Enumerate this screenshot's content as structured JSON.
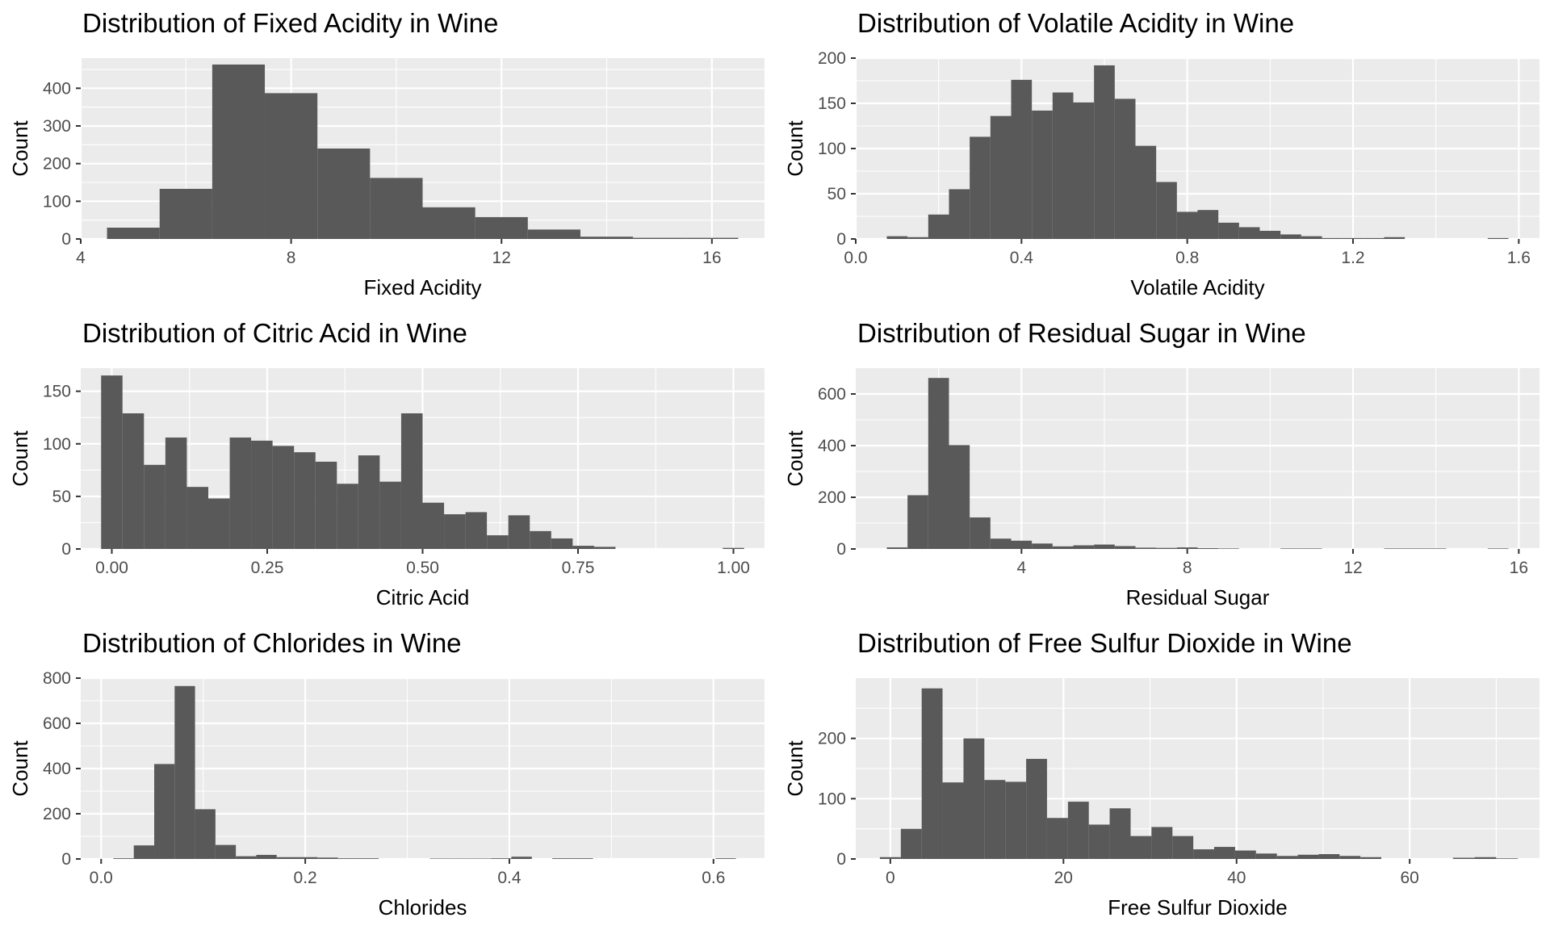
{
  "figure": {
    "background": "#ffffff",
    "panel_background": "#ebebeb",
    "bar_color": "#595959"
  },
  "chart_data": [
    {
      "type": "bar",
      "title": "Distribution of Fixed Acidity in Wine",
      "xlabel": "Fixed Acidity",
      "ylabel": "Count",
      "xlim": [
        4.0,
        17.0
      ],
      "ylim": [
        0,
        480
      ],
      "xticks": [
        4,
        8,
        12,
        16
      ],
      "xtick_labels": [
        "4",
        "8",
        "12",
        "16"
      ],
      "yticks": [
        0,
        100,
        200,
        300,
        400
      ],
      "ytick_labels": [
        "0",
        "100",
        "200",
        "300",
        "400"
      ],
      "bins": [
        [
          4.5,
          5.5,
          30
        ],
        [
          5.5,
          6.5,
          133
        ],
        [
          6.5,
          7.5,
          463
        ],
        [
          7.5,
          8.5,
          387
        ],
        [
          8.5,
          9.5,
          240
        ],
        [
          9.5,
          10.5,
          162
        ],
        [
          10.5,
          11.5,
          84
        ],
        [
          11.5,
          12.5,
          58
        ],
        [
          12.5,
          13.5,
          25
        ],
        [
          13.5,
          14.5,
          6
        ],
        [
          14.5,
          15.5,
          3
        ],
        [
          15.5,
          16.5,
          3
        ]
      ]
    },
    {
      "type": "bar",
      "title": "Distribution of Volatile Acidity in Wine",
      "xlabel": "Volatile Acidity",
      "ylabel": "Count",
      "xlim": [
        0.0,
        1.65
      ],
      "ylim": [
        0,
        200
      ],
      "xticks": [
        0.0,
        0.4,
        0.8,
        1.2,
        1.6
      ],
      "xtick_labels": [
        "0.0",
        "0.4",
        "0.8",
        "1.2",
        "1.6"
      ],
      "yticks": [
        0,
        50,
        100,
        150,
        200
      ],
      "ytick_labels": [
        "0",
        "50",
        "100",
        "150",
        "200"
      ],
      "bins": [
        [
          0.075,
          0.125,
          3
        ],
        [
          0.125,
          0.175,
          2
        ],
        [
          0.175,
          0.225,
          27
        ],
        [
          0.225,
          0.275,
          55
        ],
        [
          0.275,
          0.325,
          113
        ],
        [
          0.325,
          0.375,
          136
        ],
        [
          0.375,
          0.425,
          176
        ],
        [
          0.425,
          0.475,
          142
        ],
        [
          0.475,
          0.525,
          162
        ],
        [
          0.525,
          0.575,
          151
        ],
        [
          0.575,
          0.625,
          192
        ],
        [
          0.625,
          0.675,
          155
        ],
        [
          0.675,
          0.725,
          103
        ],
        [
          0.725,
          0.775,
          63
        ],
        [
          0.775,
          0.825,
          30
        ],
        [
          0.825,
          0.875,
          32
        ],
        [
          0.875,
          0.925,
          18
        ],
        [
          0.925,
          0.975,
          13
        ],
        [
          0.975,
          1.025,
          9
        ],
        [
          1.025,
          1.075,
          5
        ],
        [
          1.075,
          1.125,
          3
        ],
        [
          1.125,
          1.175,
          1
        ],
        [
          1.175,
          1.225,
          1
        ],
        [
          1.225,
          1.275,
          1
        ],
        [
          1.275,
          1.325,
          2
        ],
        [
          1.525,
          1.575,
          1
        ]
      ]
    },
    {
      "type": "bar",
      "title": "Distribution of Citric Acid in Wine",
      "xlabel": "Citric Acid",
      "ylabel": "Count",
      "xlim": [
        -0.05,
        1.05
      ],
      "ylim": [
        0,
        172
      ],
      "xticks": [
        0.0,
        0.25,
        0.5,
        0.75,
        1.0
      ],
      "xtick_labels": [
        "0.00",
        "0.25",
        "0.50",
        "0.75",
        "1.00"
      ],
      "yticks": [
        0,
        50,
        100,
        150
      ],
      "ytick_labels": [
        "0",
        "50",
        "100",
        "150"
      ],
      "bins": [
        [
          -0.0172,
          0.0172,
          165
        ],
        [
          0.0172,
          0.0517,
          129
        ],
        [
          0.0517,
          0.0862,
          80
        ],
        [
          0.0862,
          0.1207,
          106
        ],
        [
          0.1207,
          0.1552,
          59
        ],
        [
          0.1552,
          0.1897,
          48
        ],
        [
          0.1897,
          0.2241,
          106
        ],
        [
          0.2241,
          0.2586,
          103
        ],
        [
          0.2586,
          0.2931,
          98
        ],
        [
          0.2931,
          0.3276,
          92
        ],
        [
          0.3276,
          0.3621,
          83
        ],
        [
          0.3621,
          0.3966,
          62
        ],
        [
          0.3966,
          0.431,
          89
        ],
        [
          0.431,
          0.4655,
          64
        ],
        [
          0.4655,
          0.5,
          129
        ],
        [
          0.5,
          0.5345,
          44
        ],
        [
          0.5345,
          0.569,
          33
        ],
        [
          0.569,
          0.6034,
          35
        ],
        [
          0.6034,
          0.6379,
          13
        ],
        [
          0.6379,
          0.6724,
          32
        ],
        [
          0.6724,
          0.7069,
          17
        ],
        [
          0.7069,
          0.7414,
          10
        ],
        [
          0.7414,
          0.7759,
          3
        ],
        [
          0.7759,
          0.8103,
          2
        ],
        [
          0.9828,
          1.0172,
          1
        ]
      ]
    },
    {
      "type": "bar",
      "title": "Distribution of Residual Sugar in Wine",
      "xlabel": "Residual Sugar",
      "ylabel": "Count",
      "xlim": [
        0.0,
        16.5
      ],
      "ylim": [
        0,
        700
      ],
      "xticks": [
        4,
        8,
        12,
        16
      ],
      "xtick_labels": [
        "4",
        "8",
        "12",
        "16"
      ],
      "yticks": [
        0,
        200,
        400,
        600
      ],
      "ytick_labels": [
        "0",
        "200",
        "400",
        "600"
      ],
      "bins": [
        [
          0.75,
          1.25,
          6
        ],
        [
          1.25,
          1.75,
          208
        ],
        [
          1.75,
          2.25,
          662
        ],
        [
          2.25,
          2.75,
          402
        ],
        [
          2.75,
          3.25,
          122
        ],
        [
          3.25,
          3.75,
          40
        ],
        [
          3.75,
          4.25,
          32
        ],
        [
          4.25,
          4.75,
          21
        ],
        [
          4.75,
          5.25,
          10
        ],
        [
          5.25,
          5.75,
          14
        ],
        [
          5.75,
          6.25,
          17
        ],
        [
          6.25,
          6.75,
          11
        ],
        [
          6.75,
          7.25,
          5
        ],
        [
          7.25,
          7.75,
          4
        ],
        [
          7.75,
          8.25,
          6
        ],
        [
          8.25,
          8.75,
          3
        ],
        [
          8.75,
          9.25,
          2
        ],
        [
          10.25,
          10.75,
          2
        ],
        [
          10.75,
          11.25,
          2
        ],
        [
          12.75,
          13.25,
          2
        ],
        [
          13.25,
          13.75,
          2
        ],
        [
          13.75,
          14.25,
          2
        ],
        [
          15.25,
          15.75,
          2
        ]
      ]
    },
    {
      "type": "bar",
      "title": "Distribution of Chlorides in Wine",
      "xlabel": "Chlorides",
      "ylabel": "Count",
      "xlim": [
        -0.02,
        0.65
      ],
      "ylim": [
        0,
        800
      ],
      "xticks": [
        0.0,
        0.2,
        0.4,
        0.6
      ],
      "xtick_labels": [
        "0.0",
        "0.2",
        "0.4",
        "0.6"
      ],
      "yticks": [
        0,
        200,
        400,
        600,
        800
      ],
      "ytick_labels": [
        "0",
        "200",
        "400",
        "600",
        "800"
      ],
      "bins": [
        [
          0.012,
          0.032,
          3
        ],
        [
          0.032,
          0.052,
          60
        ],
        [
          0.052,
          0.072,
          420
        ],
        [
          0.072,
          0.092,
          765
        ],
        [
          0.092,
          0.112,
          220
        ],
        [
          0.112,
          0.132,
          62
        ],
        [
          0.132,
          0.152,
          12
        ],
        [
          0.152,
          0.172,
          18
        ],
        [
          0.172,
          0.192,
          8
        ],
        [
          0.192,
          0.212,
          8
        ],
        [
          0.212,
          0.232,
          6
        ],
        [
          0.232,
          0.252,
          3
        ],
        [
          0.252,
          0.272,
          3
        ],
        [
          0.322,
          0.342,
          2
        ],
        [
          0.342,
          0.362,
          2
        ],
        [
          0.362,
          0.382,
          2
        ],
        [
          0.382,
          0.402,
          3
        ],
        [
          0.402,
          0.422,
          10
        ],
        [
          0.442,
          0.462,
          3
        ],
        [
          0.462,
          0.482,
          3
        ],
        [
          0.602,
          0.622,
          3
        ]
      ]
    },
    {
      "type": "bar",
      "title": "Distribution of Free Sulfur Dioxide in Wine",
      "xlabel": "Free Sulfur Dioxide",
      "ylabel": "Count",
      "xlim": [
        -4,
        75
      ],
      "ylim": [
        0,
        300
      ],
      "xticks": [
        0,
        20,
        40,
        60
      ],
      "xtick_labels": [
        "0",
        "20",
        "40",
        "60"
      ],
      "yticks": [
        0,
        100,
        200
      ],
      "ytick_labels": [
        "0",
        "100",
        "200"
      ],
      "bins": [
        [
          -1.21,
          1.21,
          3
        ],
        [
          1.21,
          3.62,
          50
        ],
        [
          3.62,
          6.03,
          283
        ],
        [
          6.03,
          8.45,
          127
        ],
        [
          8.45,
          10.86,
          200
        ],
        [
          10.86,
          13.28,
          131
        ],
        [
          13.28,
          15.69,
          128
        ],
        [
          15.69,
          18.1,
          166
        ],
        [
          18.1,
          20.52,
          68
        ],
        [
          20.52,
          22.93,
          95
        ],
        [
          22.93,
          25.34,
          57
        ],
        [
          25.34,
          27.76,
          84
        ],
        [
          27.76,
          30.17,
          38
        ],
        [
          30.17,
          32.59,
          53
        ],
        [
          32.59,
          35.0,
          38
        ],
        [
          35.0,
          37.41,
          16
        ],
        [
          37.41,
          39.83,
          20
        ],
        [
          39.83,
          42.24,
          14
        ],
        [
          42.24,
          44.66,
          9
        ],
        [
          44.66,
          47.07,
          5
        ],
        [
          47.07,
          49.48,
          7
        ],
        [
          49.48,
          51.9,
          8
        ],
        [
          51.9,
          54.31,
          5
        ],
        [
          54.31,
          56.72,
          3
        ],
        [
          65.0,
          67.5,
          2
        ],
        [
          67.5,
          70.0,
          3
        ],
        [
          70.0,
          72.5,
          1
        ]
      ]
    }
  ]
}
